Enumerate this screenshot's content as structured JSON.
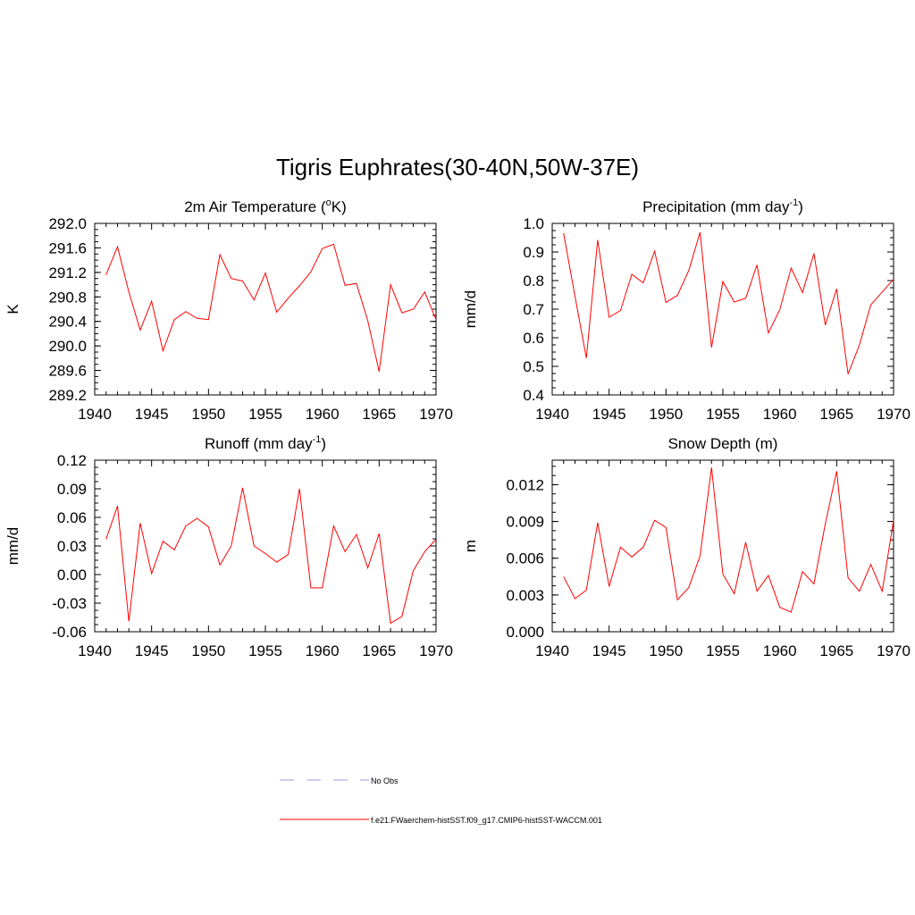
{
  "figure_title": "Tigris Euphrates(30-40N,50W-37E)",
  "legend": [
    {
      "label": "No Obs",
      "color": "#9999dd",
      "style": "dashed"
    },
    {
      "label": "f.e21.FWaerchem-histSST.f09_g17.CMIP6-histSST-WACCM.001",
      "color": "#ff0000",
      "style": "solid"
    }
  ],
  "chart_data": [
    {
      "type": "line",
      "title": "2m Air Temperature (°K)",
      "title_parts": {
        "pre": "2m Air Temperature (",
        "sup": "o",
        "post": "K)"
      },
      "ylabel": "K",
      "xlim": [
        1940,
        1970
      ],
      "ylim": [
        289.2,
        292.0
      ],
      "xticks": [
        1940,
        1945,
        1950,
        1955,
        1960,
        1965,
        1970
      ],
      "yticks": [
        "289.2",
        "289.6",
        "290.0",
        "290.4",
        "290.8",
        "291.2",
        "291.6",
        "292.0"
      ],
      "grid": false,
      "color": "#ff0000",
      "x": [
        1941,
        1942,
        1943,
        1944,
        1945,
        1946,
        1947,
        1948,
        1949,
        1950,
        1951,
        1952,
        1953,
        1954,
        1955,
        1956,
        1957,
        1958,
        1959,
        1960,
        1961,
        1962,
        1963,
        1964,
        1965,
        1966,
        1967,
        1968,
        1969,
        1970
      ],
      "y": [
        291.16,
        291.62,
        290.88,
        290.26,
        290.73,
        289.92,
        290.43,
        290.56,
        290.45,
        290.43,
        291.49,
        291.1,
        291.06,
        290.75,
        291.19,
        290.55,
        290.78,
        290.98,
        291.21,
        291.59,
        291.66,
        290.99,
        291.02,
        290.41,
        289.58,
        291.0,
        290.54,
        290.6,
        290.88,
        290.43
      ]
    },
    {
      "type": "line",
      "title": "Precipitation (mm day-1)",
      "title_parts": {
        "pre": "Precipitation (mm day",
        "sup": "-1",
        "post": ")"
      },
      "ylabel": "mm/d",
      "xlim": [
        1940,
        1970
      ],
      "ylim": [
        0.4,
        1.0
      ],
      "xticks": [
        1940,
        1945,
        1950,
        1955,
        1960,
        1965,
        1970
      ],
      "yticks": [
        "0.4",
        "0.5",
        "0.6",
        "0.7",
        "0.8",
        "0.9",
        "1.0"
      ],
      "grid": false,
      "color": "#ff0000",
      "x": [
        1941,
        1942,
        1943,
        1944,
        1945,
        1946,
        1947,
        1948,
        1949,
        1950,
        1951,
        1952,
        1953,
        1954,
        1955,
        1956,
        1957,
        1958,
        1959,
        1960,
        1961,
        1962,
        1963,
        1964,
        1965,
        1966,
        1967,
        1968,
        1969,
        1970
      ],
      "y": [
        0.966,
        0.745,
        0.529,
        0.942,
        0.672,
        0.695,
        0.822,
        0.792,
        0.903,
        0.724,
        0.748,
        0.835,
        0.969,
        0.566,
        0.797,
        0.725,
        0.738,
        0.855,
        0.617,
        0.698,
        0.844,
        0.758,
        0.895,
        0.644,
        0.771,
        0.473,
        0.575,
        0.715,
        0.76,
        0.805
      ]
    },
    {
      "type": "line",
      "title": "Runoff (mm day-1)",
      "title_parts": {
        "pre": "Runoff (mm day",
        "sup": "-1",
        "post": ")"
      },
      "ylabel": "mm/d",
      "xlim": [
        1940,
        1970
      ],
      "ylim": [
        -0.06,
        0.12
      ],
      "xticks": [
        1940,
        1945,
        1950,
        1955,
        1960,
        1965,
        1970
      ],
      "yticks": [
        "-0.06",
        "-0.03",
        "0.00",
        "0.03",
        "0.06",
        "0.09",
        "0.12"
      ],
      "grid": false,
      "color": "#ff0000",
      "x": [
        1941,
        1942,
        1943,
        1944,
        1945,
        1946,
        1947,
        1948,
        1949,
        1950,
        1951,
        1952,
        1953,
        1954,
        1955,
        1956,
        1957,
        1958,
        1959,
        1960,
        1961,
        1962,
        1963,
        1964,
        1965,
        1966,
        1967,
        1968,
        1969,
        1970
      ],
      "y": [
        0.037,
        0.072,
        -0.049,
        0.054,
        0.001,
        0.035,
        0.026,
        0.051,
        0.059,
        0.05,
        0.01,
        0.03,
        0.091,
        0.03,
        0.022,
        0.013,
        0.021,
        0.09,
        -0.014,
        -0.014,
        0.051,
        0.024,
        0.042,
        0.007,
        0.043,
        -0.051,
        -0.044,
        0.004,
        0.024,
        0.037
      ]
    },
    {
      "type": "line",
      "title": "Snow Depth (m)",
      "title_parts": {
        "pre": "Snow Depth (m)",
        "sup": "",
        "post": ""
      },
      "ylabel": "m",
      "xlim": [
        1940,
        1970
      ],
      "ylim": [
        0.0,
        0.014
      ],
      "xticks": [
        1940,
        1945,
        1950,
        1955,
        1960,
        1965,
        1970
      ],
      "yticks": [
        "0.000",
        "0.003",
        "0.006",
        "0.009",
        "0.012"
      ],
      "ytick_values": [
        0.0,
        0.003,
        0.006,
        0.009,
        0.012
      ],
      "grid": false,
      "color": "#ff0000",
      "x": [
        1941,
        1942,
        1943,
        1944,
        1945,
        1946,
        1947,
        1948,
        1949,
        1950,
        1951,
        1952,
        1953,
        1954,
        1955,
        1956,
        1957,
        1958,
        1959,
        1960,
        1961,
        1962,
        1963,
        1964,
        1965,
        1966,
        1967,
        1968,
        1969,
        1970
      ],
      "y": [
        0.0045,
        0.0027,
        0.0034,
        0.0089,
        0.0037,
        0.0069,
        0.0061,
        0.0069,
        0.0091,
        0.0085,
        0.0026,
        0.0036,
        0.0062,
        0.0134,
        0.0047,
        0.0031,
        0.0073,
        0.0033,
        0.0046,
        0.002,
        0.0016,
        0.0049,
        0.0039,
        0.0088,
        0.0131,
        0.0044,
        0.0033,
        0.0055,
        0.0033,
        0.0091
      ]
    }
  ]
}
